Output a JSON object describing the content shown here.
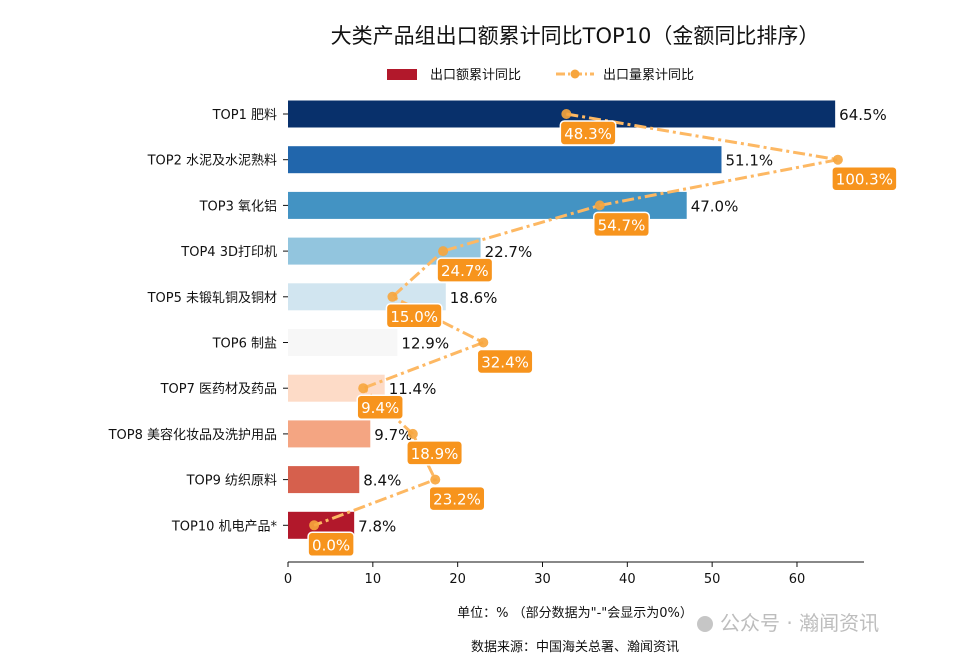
{
  "chart_data": {
    "type": "bar",
    "orientation": "horizontal",
    "title": "大类产品组出口额累计同比TOP10（金额同比排序）",
    "categories": [
      "TOP1 肥料",
      "TOP2 水泥及水泥熟料",
      "TOP3 氧化铝",
      "TOP4 3D打印机",
      "TOP5 未锻轧铜及铜材",
      "TOP6 制盐",
      "TOP7 医药材及药品",
      "TOP8 美容化妆品及洗护用品",
      "TOP9 纺织原料",
      "TOP10 机电产品*"
    ],
    "series": [
      {
        "name": "出口额累计同比",
        "type": "bar",
        "values": [
          64.5,
          51.1,
          47.0,
          22.7,
          18.6,
          12.9,
          11.4,
          9.7,
          8.4,
          7.8
        ],
        "colors": [
          "#08306b",
          "#2166ac",
          "#4393c3",
          "#92c5de",
          "#d1e5f0",
          "#f7f7f7",
          "#fddbc7",
          "#f4a582",
          "#d6604d",
          "#b2182b"
        ],
        "legend_color": "#b2182b"
      },
      {
        "name": "出口量累计同比",
        "type": "line",
        "style": "dash-dot",
        "color": "#fdb863",
        "label_color": "#f7941d",
        "values": [
          48.3,
          100.3,
          54.7,
          24.7,
          15.0,
          32.4,
          9.4,
          18.9,
          23.2,
          0.0
        ],
        "secondary_xlim": [
          -5.0,
          105.3
        ]
      }
    ],
    "xlim": [
      0,
      67.9
    ],
    "xticks": [
      0,
      10,
      20,
      30,
      40,
      50,
      60
    ],
    "legend": "top-center",
    "grid": false,
    "xlabel": "单位：%  （部分数据为\"-\"会显示为0%）",
    "source": "数据来源：中国海关总署、瀚闻资讯",
    "value_suffix": "%"
  },
  "watermark": "公众号 · 瀚闻资讯"
}
